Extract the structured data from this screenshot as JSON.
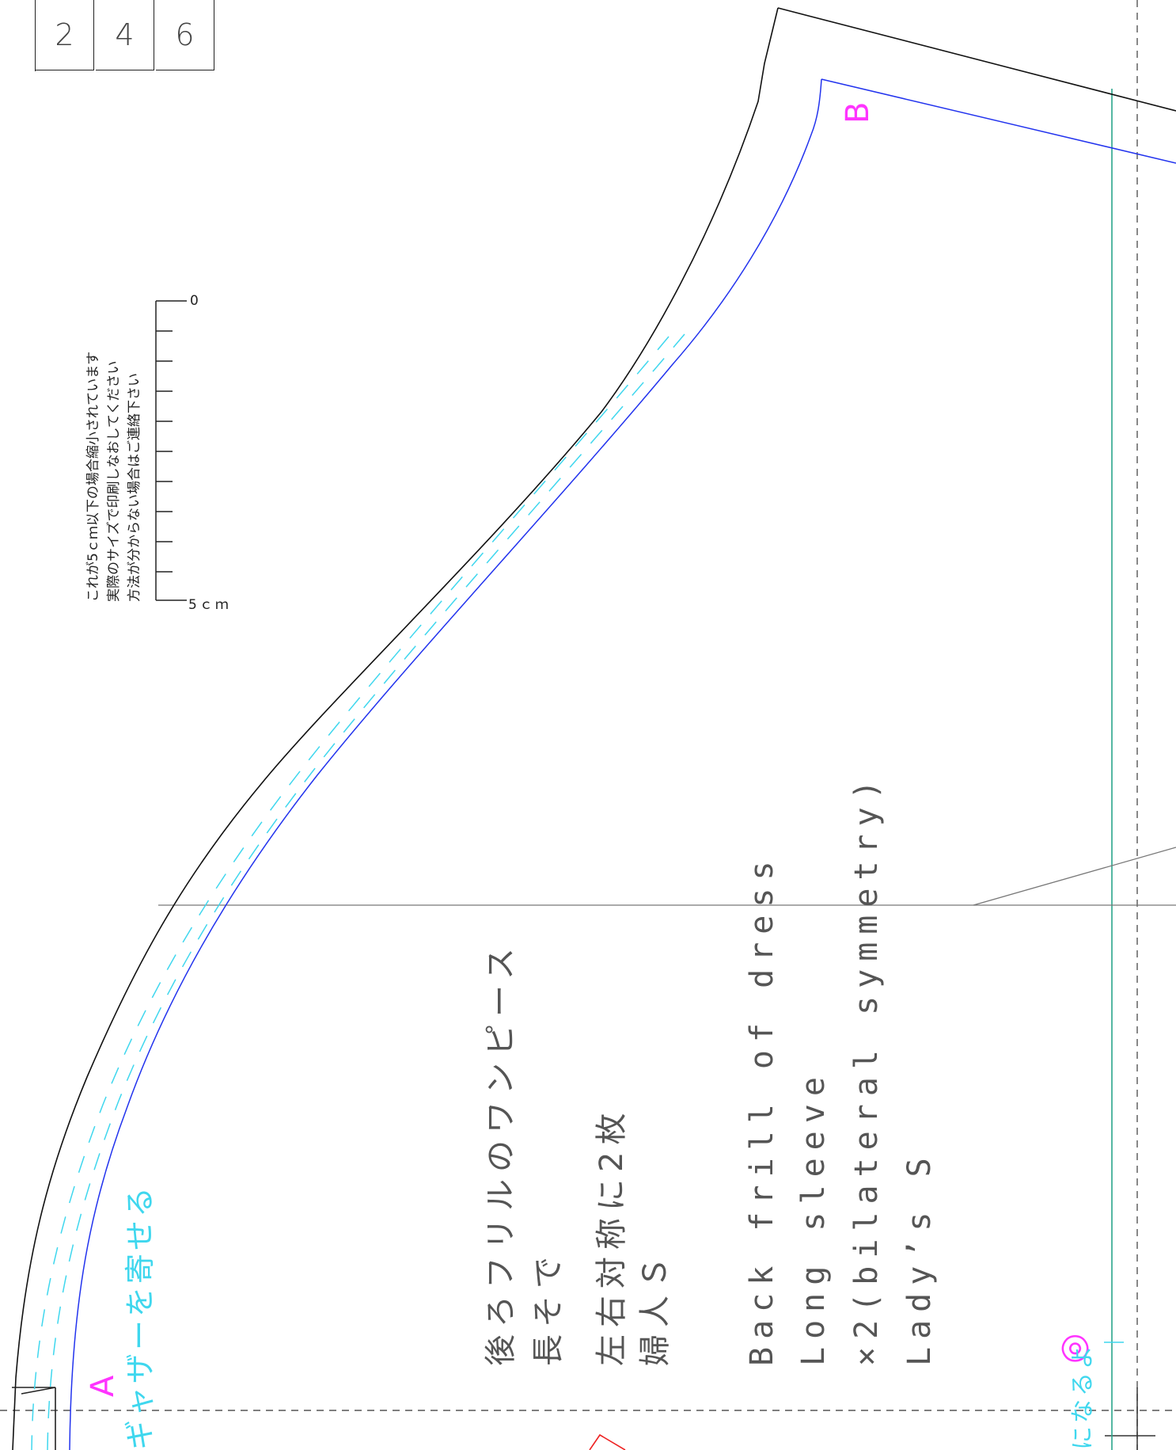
{
  "page_grid": {
    "cells": [
      "2",
      "4",
      "6"
    ]
  },
  "scale_bar": {
    "note_lines": [
      "これが5ｃｍ以下の場合縮小されています",
      "実際のサイズで印刷しなおしてください",
      "方法が分からない場合はご連絡下さい"
    ],
    "label_zero": "0",
    "label_end": "5ｃｍ"
  },
  "piece_title_jp": [
    "後ろフリルのワンピース",
    "長そで",
    "左右対称に2枚",
    "婦人Ｓ"
  ],
  "piece_title_en": [
    "Back frill of dress",
    "Long sleeve",
    "×2(bilateral symmetry)",
    "Lady’s S"
  ],
  "gather_instruction": "ギャザーを寄せる",
  "fold_instruction": "になるよ",
  "markers": {
    "a": "A",
    "b": "B",
    "double_circle": "◎"
  },
  "colors": {
    "cut_line": "#111111",
    "seam_line": "#2233ee",
    "stitch_line": "#3fd7ee",
    "grain_line": "#2aa58c",
    "guide_line": "#777777",
    "marker": "#ff34ff",
    "notch_mark": "#ee2222"
  }
}
